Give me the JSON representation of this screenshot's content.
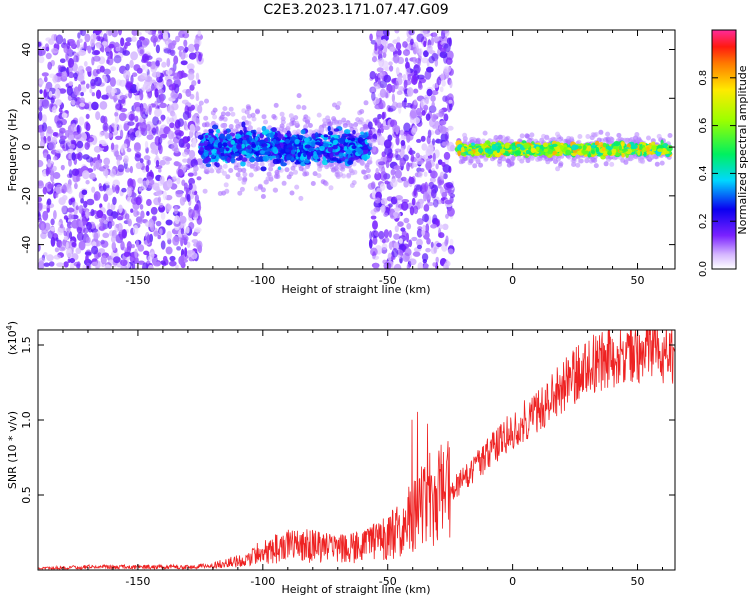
{
  "figure": {
    "title": "C2E3.2023.171.07.47.G09"
  },
  "chart_data": [
    {
      "type": "heatmap",
      "xlabel": "Height of straight line (km)",
      "ylabel": "Frequency (Hz)",
      "xlim": [
        -190,
        65
      ],
      "ylim": [
        -50,
        48
      ],
      "xticks": [
        -150,
        -100,
        -50,
        0,
        50
      ],
      "yticks": [
        -40,
        -20,
        0,
        20,
        40
      ],
      "colorbar": {
        "label": "Normalized spectral amplitude",
        "range": [
          0,
          1
        ],
        "ticks": [
          0.0,
          0.2,
          0.4,
          0.6,
          0.8
        ],
        "colormap": "rainbow"
      },
      "regions": [
        {
          "x": [
            -190,
            -125
          ],
          "description_scatter": "broadband",
          "amplitude": 0.15
        },
        {
          "x": [
            -125,
            -57
          ],
          "center_freq": 0,
          "spread_hz": 6,
          "amplitude": 0.35
        },
        {
          "x": [
            -57,
            -24
          ],
          "description_scatter": "broadband",
          "amplitude": 0.15
        },
        {
          "x": [
            -22,
            63
          ],
          "center_freq": -1,
          "spread_hz": 2,
          "amplitude": 0.75
        }
      ],
      "grid": false
    },
    {
      "type": "line",
      "xlabel": "Height of straight line (km)",
      "ylabel": "SNR (10 * v/v)",
      "y_multiplier": "(x10^4)",
      "y_multiplier_base": "(x10",
      "y_multiplier_exp": "4",
      "y_multiplier_close": ")",
      "xlim": [
        -190,
        65
      ],
      "ylim": [
        0,
        1.6
      ],
      "xticks": [
        -150,
        -100,
        -50,
        0,
        50
      ],
      "yticks": [
        0.5,
        1.0,
        1.5
      ],
      "series": [
        {
          "color": "#ee2222",
          "x": [
            -190,
            -170,
            -150,
            -130,
            -120,
            -110,
            -100,
            -90,
            -80,
            -70,
            -60,
            -50,
            -45,
            -40,
            -35,
            -30,
            -25,
            -20,
            -15,
            -10,
            -5,
            0,
            5,
            10,
            15,
            20,
            25,
            30,
            35,
            40,
            45,
            50,
            55,
            60,
            65
          ],
          "y": [
            0.01,
            0.02,
            0.02,
            0.02,
            0.03,
            0.06,
            0.12,
            0.16,
            0.16,
            0.14,
            0.15,
            0.22,
            0.28,
            0.38,
            0.45,
            0.52,
            0.55,
            0.62,
            0.72,
            0.8,
            0.88,
            0.98,
            1.05,
            1.1,
            1.2,
            1.28,
            1.35,
            1.42,
            1.45,
            1.47,
            1.48,
            1.5,
            1.5,
            1.52,
            1.5
          ]
        }
      ],
      "grid": false
    }
  ]
}
